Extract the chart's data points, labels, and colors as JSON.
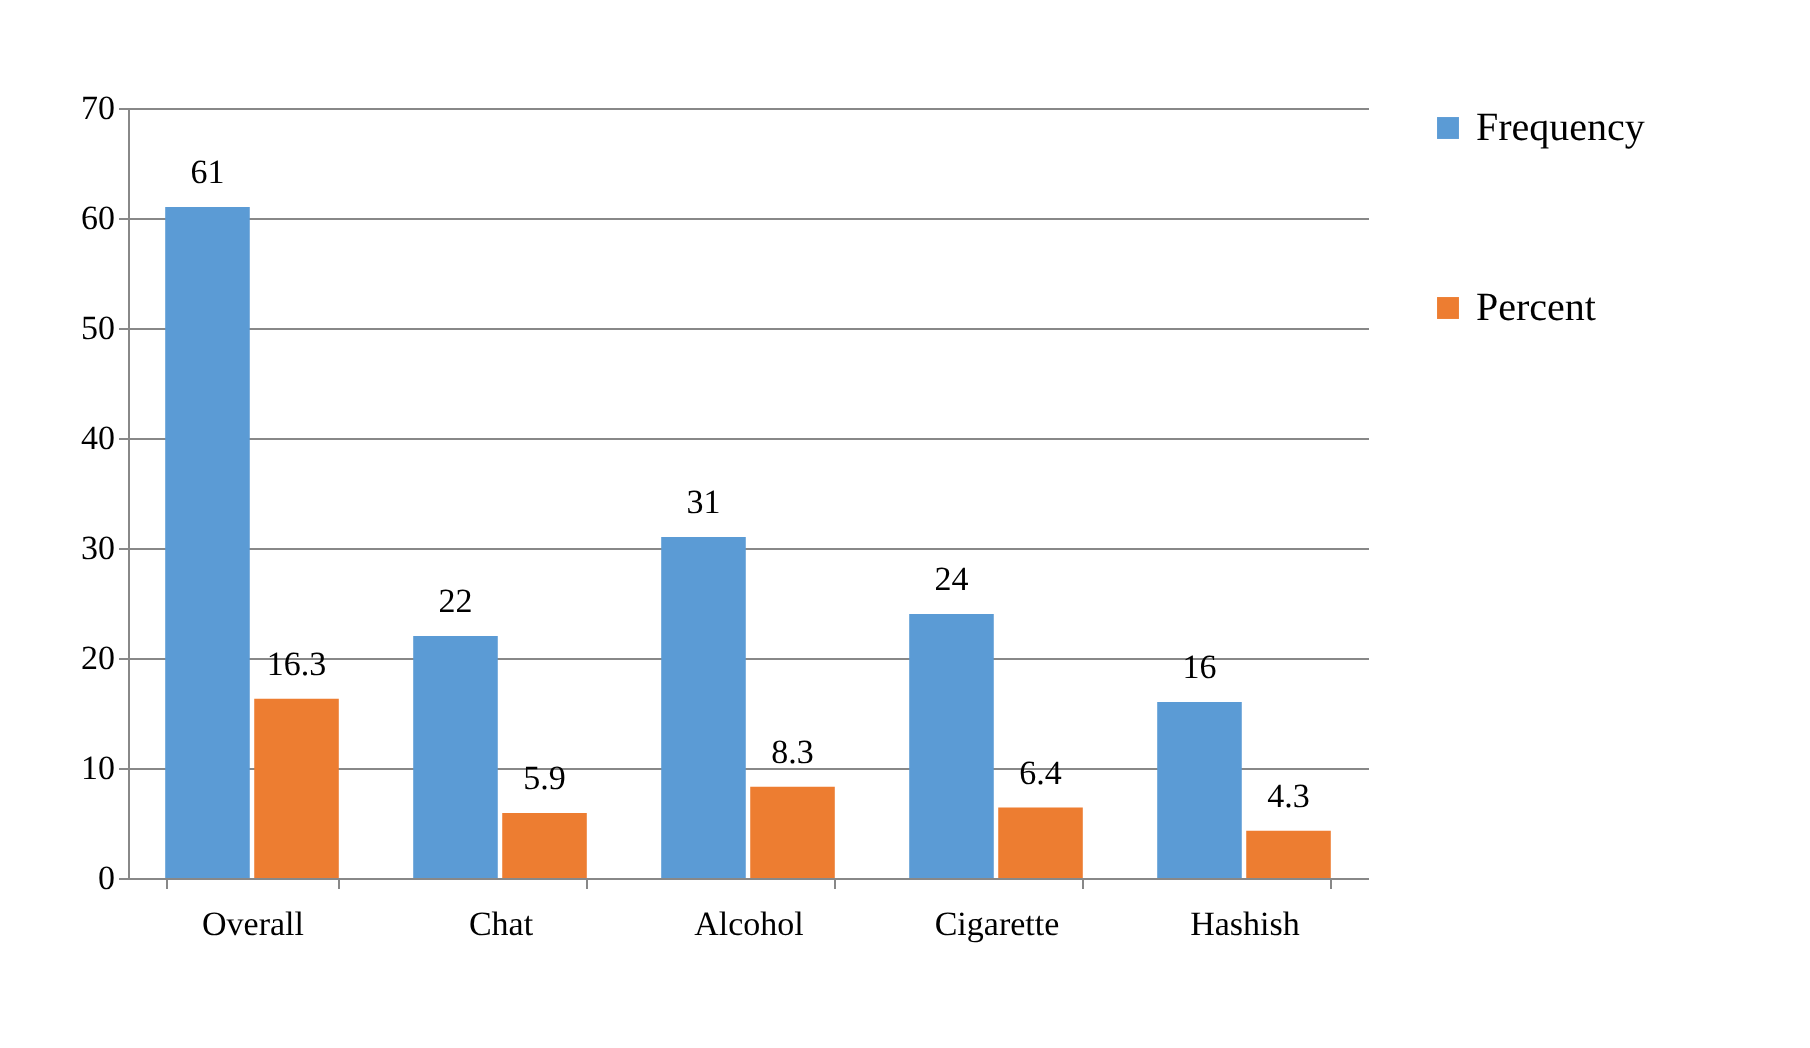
{
  "chart_data": {
    "type": "bar",
    "categories": [
      "Overall",
      "Chat",
      "Alcohol",
      "Cigarette",
      "Hashish"
    ],
    "series": [
      {
        "name": "Frequency",
        "color": "#5b9bd5",
        "values": [
          61,
          22,
          31,
          24,
          16
        ]
      },
      {
        "name": "Percent",
        "color": "#ed7d31",
        "values": [
          16.3,
          5.9,
          8.3,
          6.4,
          4.3
        ]
      }
    ],
    "ylim": [
      0,
      70
    ],
    "yticks": [
      0,
      10,
      20,
      30,
      40,
      50,
      60,
      70
    ],
    "grid": "y",
    "legend": "right",
    "data_labels": true
  }
}
